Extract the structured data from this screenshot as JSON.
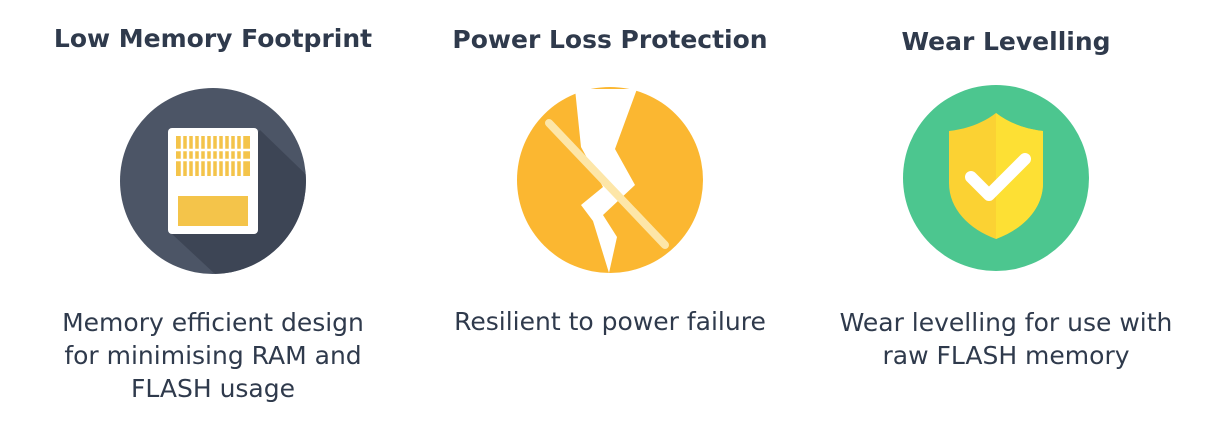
{
  "features": [
    {
      "title": "Low Memory Footprint",
      "icon": "memory-card-icon",
      "description_lines": [
        "Memory efficient design",
        "for minimising RAM and",
        "FLASH usage"
      ]
    },
    {
      "title": "Power Loss Protection",
      "icon": "power-loss-icon",
      "description_lines": [
        "Resilient to power failure"
      ]
    },
    {
      "title": "Wear Levelling",
      "icon": "shield-check-icon",
      "description_lines": [
        "Wear levelling for use with",
        "raw FLASH memory"
      ]
    }
  ],
  "colors": {
    "text": "#2f3a4c",
    "dark_circle": "#4c5566",
    "amber": "#fbb731",
    "green": "#4cc68f",
    "yellow": "#fbd233"
  }
}
